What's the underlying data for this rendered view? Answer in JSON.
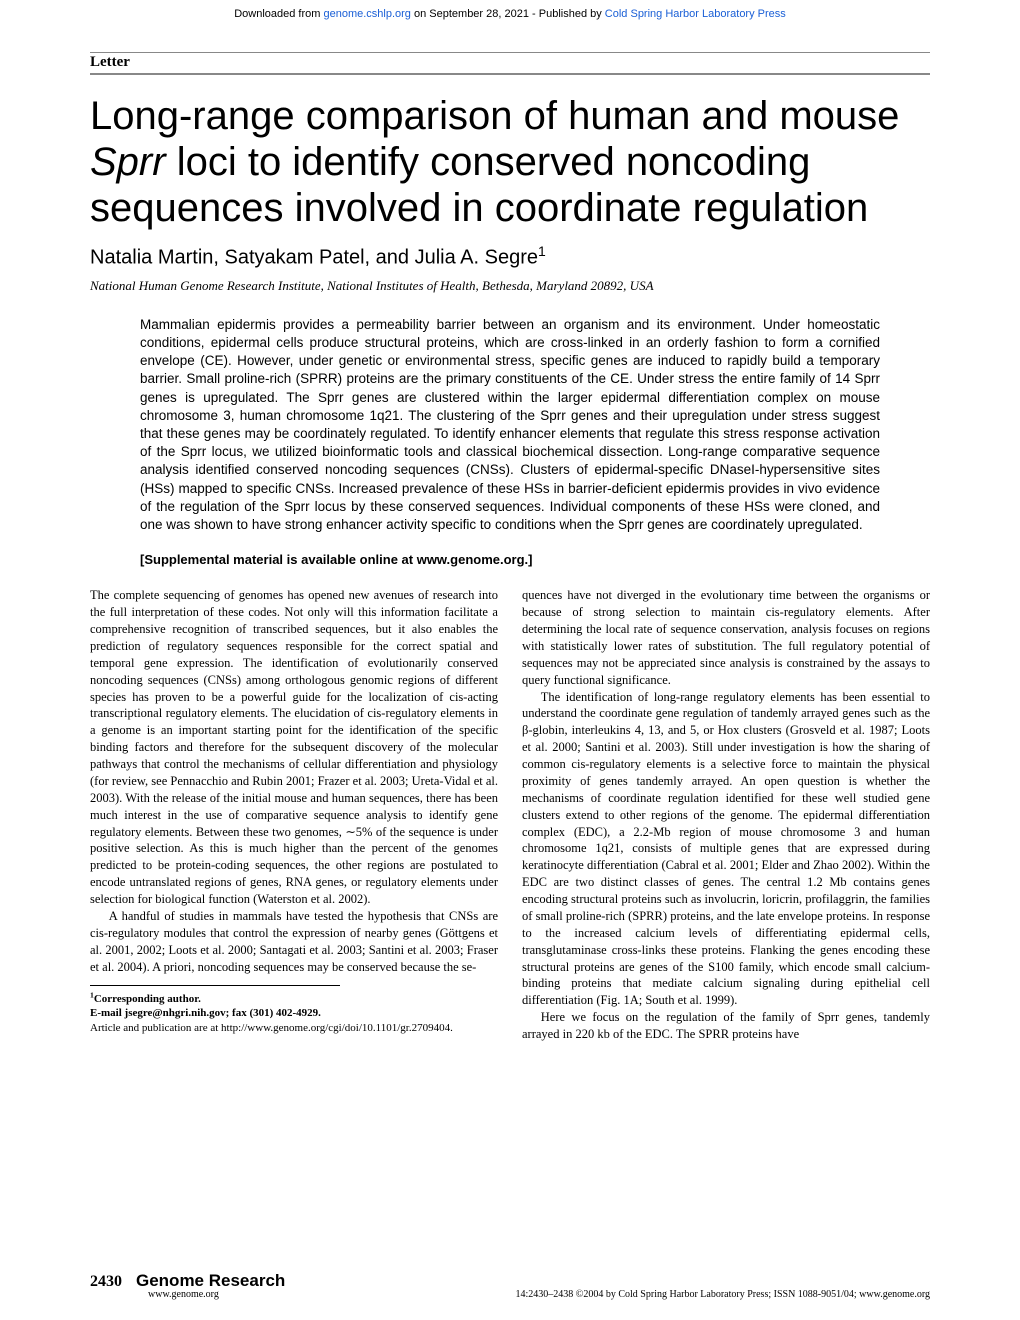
{
  "download_bar": {
    "prefix": "Downloaded from ",
    "link1": "genome.cshlp.org",
    "mid": " on September 28, 2021 - Published by ",
    "link2": "Cold Spring Harbor Laboratory Press"
  },
  "section_label": "Letter",
  "title_parts": {
    "t1": "Long-range comparison of human and mouse ",
    "t2": "Sprr",
    "t3": " loci to identify conserved noncoding sequences involved in coordinate regulation"
  },
  "authors": "Natalia Martin, Satyakam Patel, and Julia A. Segre",
  "author_sup": "1",
  "affiliation": "National Human Genome Research Institute, National Institutes of Health, Bethesda, Maryland 20892, USA",
  "abstract": "Mammalian epidermis provides a permeability barrier between an organism and its environment. Under homeostatic conditions, epidermal cells produce structural proteins, which are cross-linked in an orderly fashion to form a cornified envelope (CE). However, under genetic or environmental stress, specific genes are induced to rapidly build a temporary barrier. Small proline-rich (SPRR) proteins are the primary constituents of the CE. Under stress the entire family of 14 Sprr genes is upregulated. The Sprr genes are clustered within the larger epidermal differentiation complex on mouse chromosome 3, human chromosome 1q21. The clustering of the Sprr genes and their upregulation under stress suggest that these genes may be coordinately regulated. To identify enhancer elements that regulate this stress response activation of the Sprr locus, we utilized bioinformatic tools and classical biochemical dissection. Long-range comparative sequence analysis identified conserved noncoding sequences (CNSs). Clusters of epidermal-specific DNaseI-hypersensitive sites (HSs) mapped to specific CNSs. Increased prevalence of these HSs in barrier-deficient epidermis provides in vivo evidence of the regulation of the Sprr locus by these conserved sequences. Individual components of these HSs were cloned, and one was shown to have strong enhancer activity specific to conditions when the Sprr genes are coordinately upregulated.",
  "supplemental": "[Supplemental material is available online at www.genome.org.]",
  "col_left": {
    "p1": "The complete sequencing of genomes has opened new avenues of research into the full interpretation of these codes. Not only will this information facilitate a comprehensive recognition of transcribed sequences, but it also enables the prediction of regulatory sequences responsible for the correct spatial and temporal gene expression. The identification of evolutionarily conserved noncoding sequences (CNSs) among orthologous genomic regions of different species has proven to be a powerful guide for the localization of cis-acting transcriptional regulatory elements. The elucidation of cis-regulatory elements in a genome is an important starting point for the identification of the specific binding factors and therefore for the subsequent discovery of the molecular pathways that control the mechanisms of cellular differentiation and physiology (for review, see Pennacchio and Rubin 2001; Frazer et al. 2003; Ureta-Vidal et al. 2003). With the release of the initial mouse and human sequences, there has been much interest in the use of comparative sequence analysis to identify gene regulatory elements. Between these two genomes, ∼5% of the sequence is under positive selection. As this is much higher than the percent of the genomes predicted to be protein-coding sequences, the other regions are postulated to encode untranslated regions of genes, RNA genes, or regulatory elements under selection for biological function (Waterston et al. 2002).",
    "p2": "A handful of studies in mammals have tested the hypothesis that CNSs are cis-regulatory modules that control the expression of nearby genes (Göttgens et al. 2001, 2002; Loots et al. 2000; Santagati et al. 2003; Santini et al. 2003; Fraser et al. 2004). A priori, noncoding sequences may be conserved because the se-"
  },
  "col_right": {
    "p1": "quences have not diverged in the evolutionary time between the organisms or because of strong selection to maintain cis-regulatory elements. After determining the local rate of sequence conservation, analysis focuses on regions with statistically lower rates of substitution. The full regulatory potential of sequences may not be appreciated since analysis is constrained by the assays to query functional significance.",
    "p2": "The identification of long-range regulatory elements has been essential to understand the coordinate gene regulation of tandemly arrayed genes such as the β-globin, interleukins 4, 13, and 5, or Hox clusters (Grosveld et al. 1987; Loots et al. 2000; Santini et al. 2003). Still under investigation is how the sharing of common cis-regulatory elements is a selective force to maintain the physical proximity of genes tandemly arrayed. An open question is whether the mechanisms of coordinate regulation identified for these well studied gene clusters extend to other regions of the genome. The epidermal differentiation complex (EDC), a 2.2-Mb region of mouse chromosome 3 and human chromosome 1q21, consists of multiple genes that are expressed during keratinocyte differentiation (Cabral et al. 2001; Elder and Zhao 2002). Within the EDC are two distinct classes of genes. The central 1.2 Mb contains genes encoding structural proteins such as involucrin, loricrin, profilaggrin, the families of small proline-rich (SPRR) proteins, and the late envelope proteins. In response to the increased calcium levels of differentiating epidermal cells, transglutaminase cross-links these proteins. Flanking the genes encoding these structural proteins are genes of the S100 family, which encode small calcium-binding proteins that mediate calcium signaling during epithelial cell differentiation (Fig. 1A; South et al. 1999).",
    "p3": "Here we focus on the regulation of the family of Sprr genes, tandemly arrayed in 220 kb of the EDC. The SPRR proteins have"
  },
  "corresponding": {
    "label": "Corresponding author.",
    "email": "E-mail jsegre@nhgri.nih.gov; fax (301) 402-4929.",
    "pub": "Article and publication are at http://www.genome.org/cgi/doi/10.1101/gr.2709404."
  },
  "footer": {
    "page": "2430",
    "journal": "Genome Research",
    "url": "www.genome.org",
    "copyright": "14:2430–2438 ©2004 by Cold Spring Harbor Laboratory Press; ISSN 1088-9051/04; www.genome.org"
  }
}
